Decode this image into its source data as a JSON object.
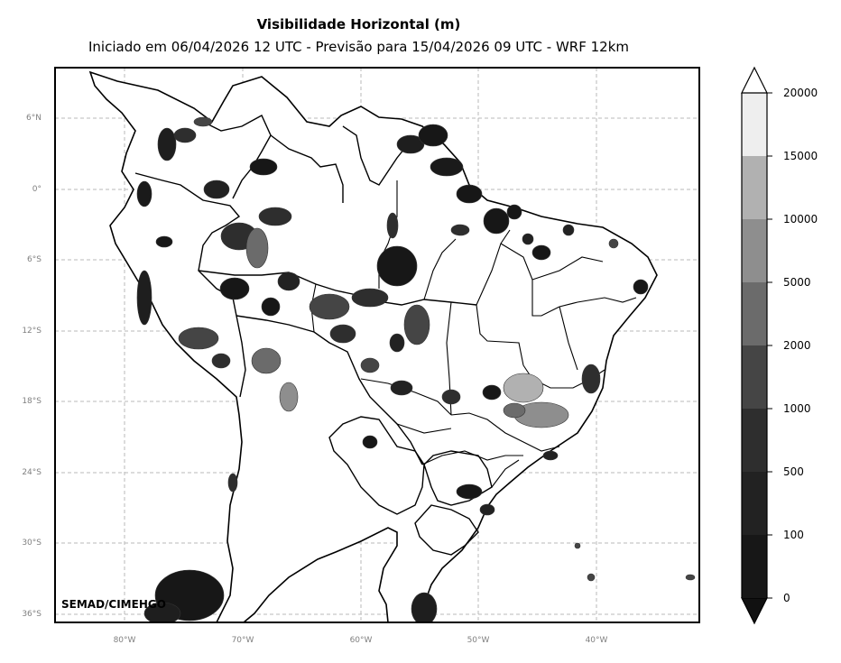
{
  "title": "Visibilidade Horizontal (m)",
  "subtitle": "Iniciado em 06/04/2026 12 UTC - Previsão para 15/04/2026 09 UTC - WRF 12km",
  "credit": "SEMAD/CIMEHGO",
  "lat_ticks": [
    "6°N",
    "0°",
    "6°S",
    "12°S",
    "18°S",
    "24°S",
    "30°S",
    "36°S"
  ],
  "lon_ticks": [
    "80°W",
    "70°W",
    "60°W",
    "50°W",
    "40°W"
  ],
  "colorbar": {
    "ticks": [
      "0",
      "100",
      "500",
      "1000",
      "2000",
      "5000",
      "10000",
      "15000",
      "20000"
    ],
    "colors": [
      "#171717",
      "#222222",
      "#2e2e2e",
      "#454545",
      "#6b6b6b",
      "#8e8e8e",
      "#b1b1b1",
      "#eeeeee"
    ],
    "extend": "both"
  },
  "grid": "dashed"
}
